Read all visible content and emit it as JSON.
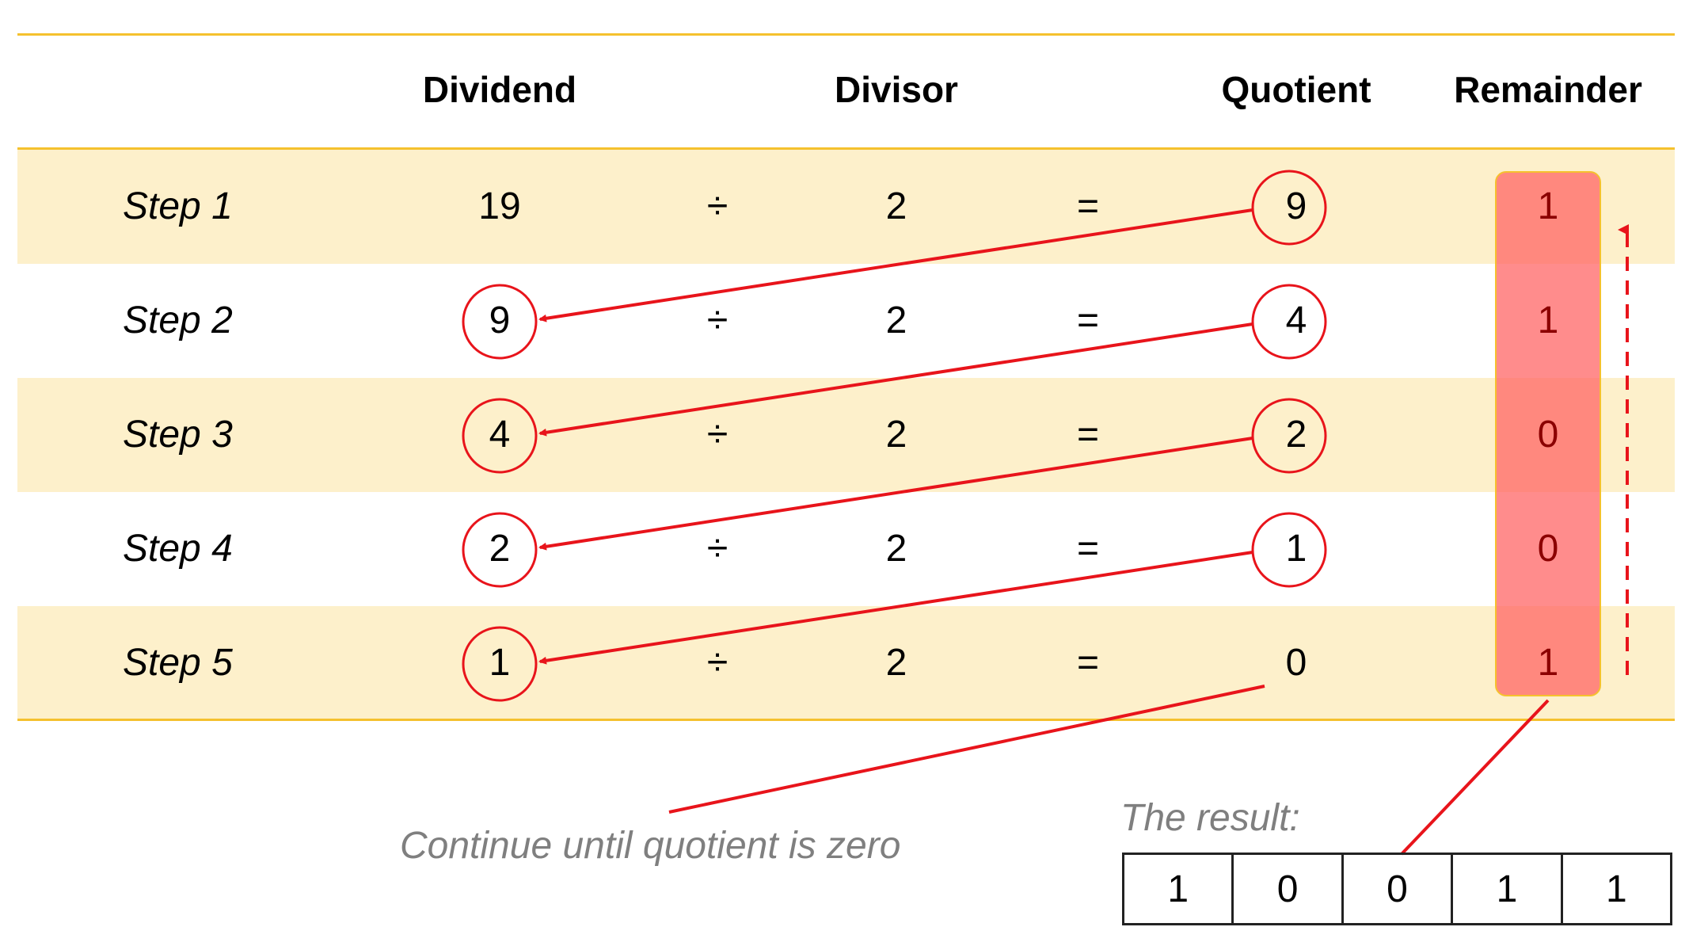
{
  "headers": {
    "dividend": "Dividend",
    "divisor": "Divisor",
    "quotient": "Quotient",
    "remainder": "Remainder"
  },
  "symbols": {
    "divide": "÷",
    "equals": "="
  },
  "steps": [
    {
      "label": "Step 1",
      "dividend": "19",
      "divisor": "2",
      "quotient": "9",
      "remainder": "1"
    },
    {
      "label": "Step 2",
      "dividend": "9",
      "divisor": "2",
      "quotient": "4",
      "remainder": "1"
    },
    {
      "label": "Step 3",
      "dividend": "4",
      "divisor": "2",
      "quotient": "2",
      "remainder": "0"
    },
    {
      "label": "Step 4",
      "dividend": "2",
      "divisor": "2",
      "quotient": "1",
      "remainder": "0"
    },
    {
      "label": "Step 5",
      "dividend": "1",
      "divisor": "2",
      "quotient": "0",
      "remainder": "1"
    }
  ],
  "note": "Continue until quotient is zero",
  "result": {
    "label": "The result:",
    "bits": [
      "1",
      "0",
      "0",
      "1",
      "1"
    ]
  },
  "colors": {
    "band": "#FDF0CB",
    "rule": "#F5C12E",
    "arrow": "#E8141B",
    "remainder_highlight": "#FF6E6E",
    "muted_text": "#7F7F7F"
  }
}
